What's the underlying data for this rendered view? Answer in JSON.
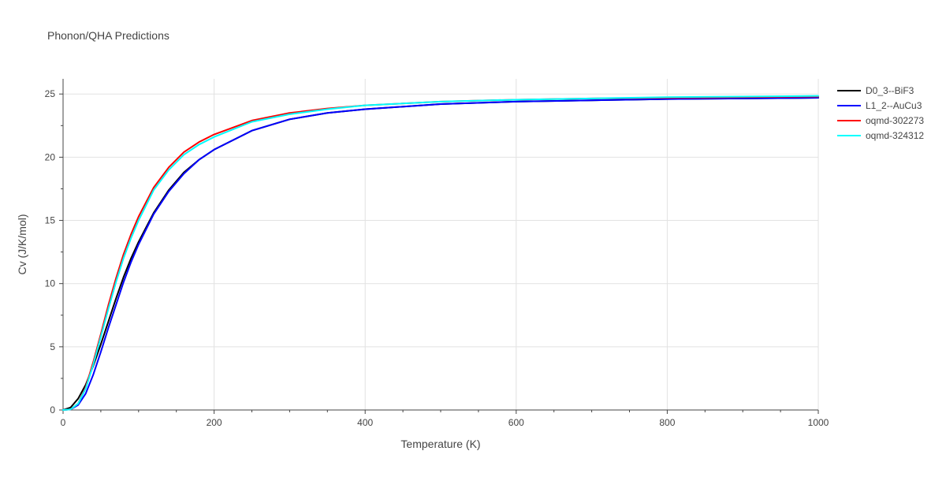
{
  "chart_data": {
    "type": "line",
    "title": "Phonon/QHA Predictions",
    "xlabel": "Temperature (K)",
    "ylabel": "Cv (J/K/mol)",
    "xlim": [
      0,
      1000
    ],
    "ylim": [
      0,
      26.2
    ],
    "xticks": [
      0,
      200,
      400,
      600,
      800,
      1000
    ],
    "yticks": [
      0,
      5,
      10,
      15,
      20,
      25
    ],
    "xtick_labels": [
      "0",
      "200",
      "400",
      "600",
      "800",
      "1000"
    ],
    "ytick_labels": [
      "0",
      "5",
      "10",
      "15",
      "20",
      "25"
    ],
    "grid": true,
    "legend_position": "top-right",
    "series": [
      {
        "name": "D0_3--BiF3",
        "color": "#000000",
        "x": [
          0,
          10,
          20,
          30,
          40,
          50,
          60,
          70,
          80,
          90,
          100,
          120,
          140,
          160,
          180,
          200,
          250,
          300,
          350,
          400,
          500,
          600,
          700,
          800,
          900,
          1000
        ],
        "y": [
          0,
          0.2,
          0.9,
          2.0,
          3.5,
          5.2,
          7.0,
          8.8,
          10.5,
          12.0,
          13.3,
          15.6,
          17.4,
          18.8,
          19.8,
          20.6,
          22.1,
          23.0,
          23.5,
          23.8,
          24.2,
          24.4,
          24.5,
          24.6,
          24.65,
          24.7
        ]
      },
      {
        "name": "L1_2--AuCu3",
        "color": "#0000ff",
        "x": [
          0,
          10,
          20,
          30,
          40,
          50,
          60,
          70,
          80,
          90,
          100,
          120,
          140,
          160,
          180,
          200,
          250,
          300,
          350,
          400,
          500,
          600,
          700,
          800,
          900,
          1000
        ],
        "y": [
          0,
          0.05,
          0.4,
          1.3,
          2.8,
          4.6,
          6.5,
          8.3,
          10.1,
          11.7,
          13.1,
          15.5,
          17.3,
          18.7,
          19.8,
          20.6,
          22.1,
          23.0,
          23.5,
          23.8,
          24.2,
          24.4,
          24.5,
          24.6,
          24.65,
          24.7
        ]
      },
      {
        "name": "oqmd-302273",
        "color": "#ff0000",
        "x": [
          0,
          10,
          20,
          30,
          40,
          50,
          60,
          70,
          80,
          90,
          100,
          120,
          140,
          160,
          180,
          200,
          250,
          300,
          350,
          400,
          500,
          600,
          700,
          800,
          900,
          1000
        ],
        "y": [
          0,
          0.05,
          0.5,
          1.8,
          3.8,
          6.0,
          8.3,
          10.4,
          12.3,
          13.9,
          15.3,
          17.6,
          19.2,
          20.4,
          21.2,
          21.8,
          22.9,
          23.5,
          23.85,
          24.1,
          24.4,
          24.55,
          24.65,
          24.7,
          24.75,
          24.8
        ]
      },
      {
        "name": "oqmd-324312",
        "color": "#00ffff",
        "x": [
          0,
          10,
          20,
          30,
          40,
          50,
          60,
          70,
          80,
          90,
          100,
          120,
          140,
          160,
          180,
          200,
          250,
          300,
          350,
          400,
          500,
          600,
          700,
          800,
          900,
          1000
        ],
        "y": [
          0,
          0.05,
          0.5,
          1.7,
          3.6,
          5.8,
          8.0,
          10.1,
          12.0,
          13.6,
          15.0,
          17.4,
          19.0,
          20.2,
          21.0,
          21.6,
          22.8,
          23.4,
          23.8,
          24.1,
          24.4,
          24.55,
          24.65,
          24.75,
          24.8,
          24.85
        ]
      }
    ]
  }
}
